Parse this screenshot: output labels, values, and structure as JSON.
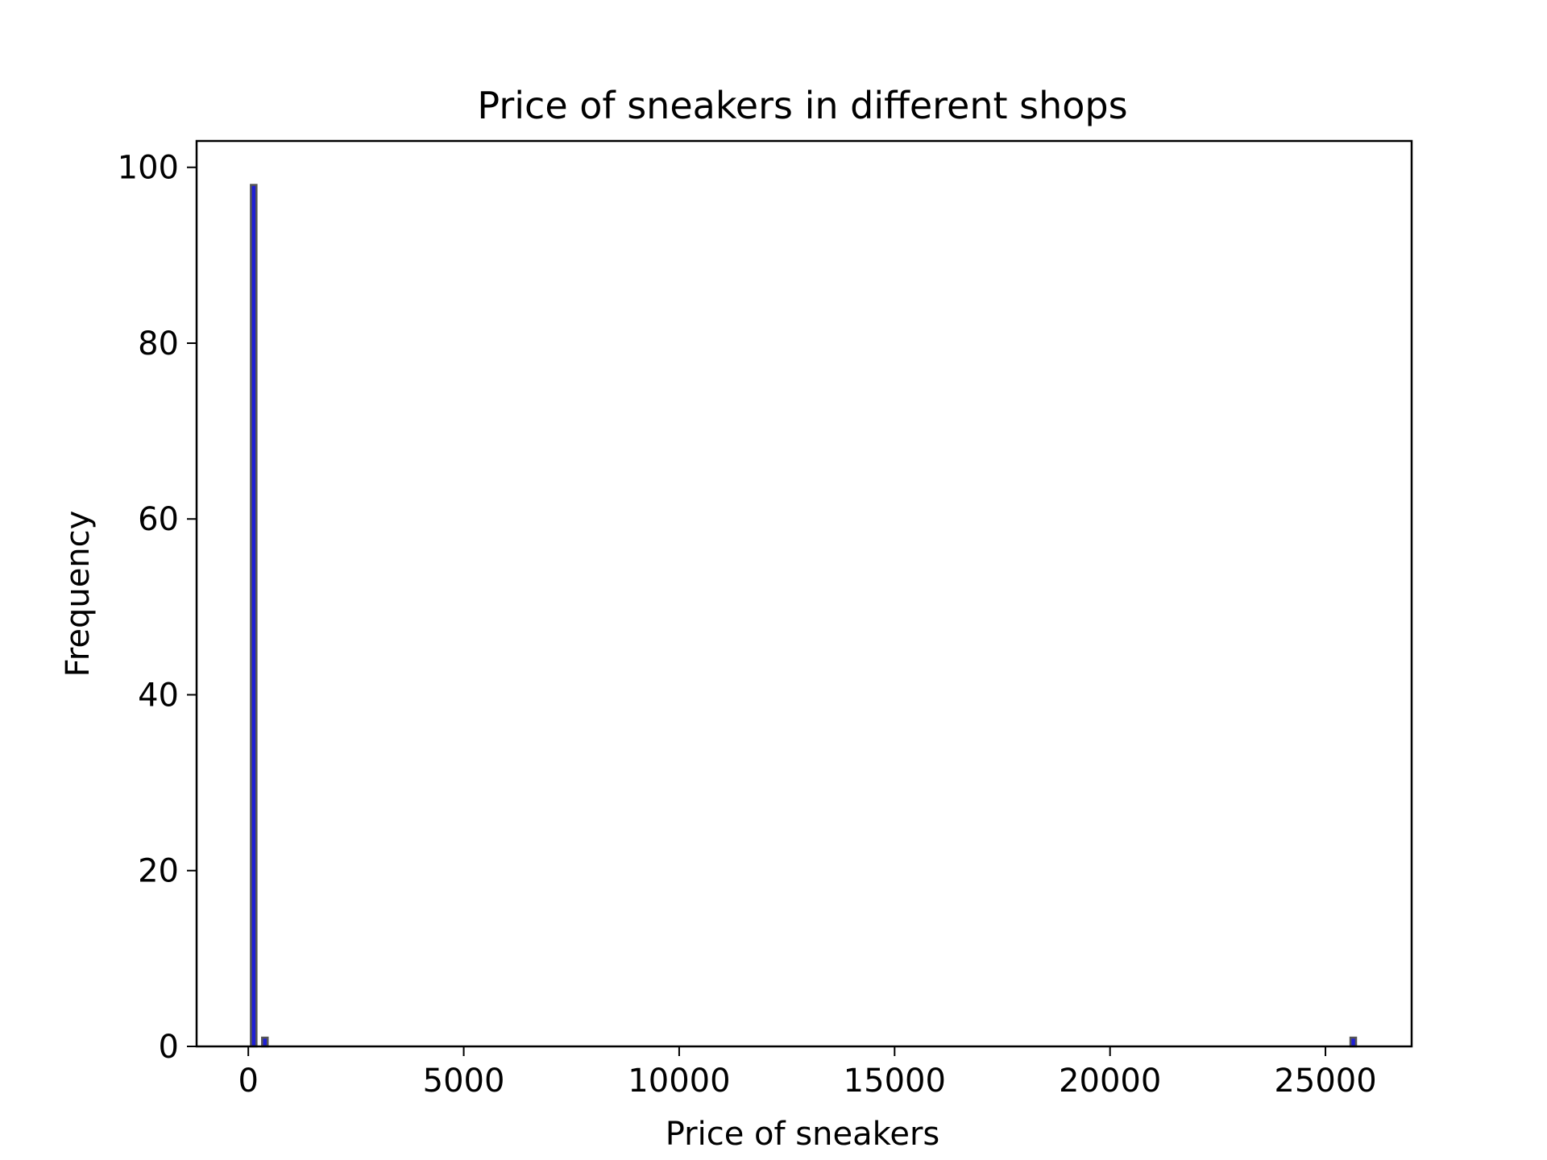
{
  "chart_data": {
    "type": "bar",
    "title": "Price of sneakers in different shops",
    "xlabel": "Price of sneakers",
    "ylabel": "Frequency",
    "xlim": [
      -1200,
      27000
    ],
    "ylim": [
      0,
      103
    ],
    "x_ticks": [
      0,
      5000,
      10000,
      15000,
      20000,
      25000
    ],
    "x_tick_labels": [
      "0",
      "5000",
      "10000",
      "15000",
      "20000",
      "25000"
    ],
    "y_ticks": [
      0,
      20,
      40,
      60,
      80,
      100
    ],
    "y_tick_labels": [
      "0",
      "20",
      "40",
      "60",
      "80",
      "100"
    ],
    "grid": false,
    "bar_color": "#1f1fd6",
    "edge_color": "#555555",
    "bins": [
      {
        "start": 60,
        "end": 190,
        "value": 98
      },
      {
        "start": 320,
        "end": 450,
        "value": 1
      },
      {
        "start": 25580,
        "end": 25710,
        "value": 1
      }
    ]
  }
}
